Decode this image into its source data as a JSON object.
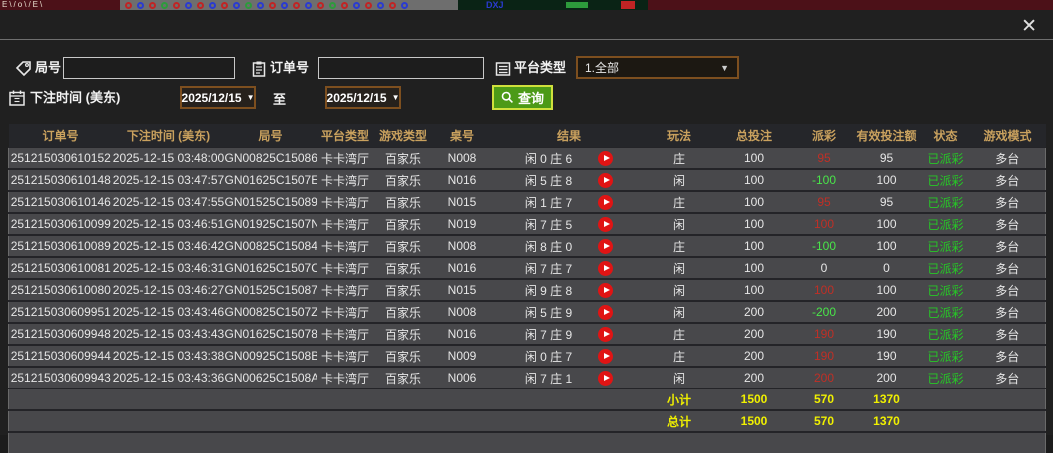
{
  "icons": {
    "close": "✕",
    "dropdown_arrow": "▼"
  },
  "filters": {
    "game_no": {
      "label": "局号",
      "value": ""
    },
    "order_no": {
      "label": "订单号",
      "value": ""
    },
    "platform_type": {
      "label": "平台类型",
      "selected": "1.全部"
    },
    "bet_time": {
      "label": "下注时间 (美东)",
      "from": "2025/12/15",
      "to_label": "至",
      "to": "2025/12/15"
    },
    "search_label": "查询"
  },
  "table": {
    "columns": [
      "订单号",
      "下注时间 (美东)",
      "局号",
      "平台类型",
      "游戏类型",
      "桌号",
      "结果",
      "玩法",
      "总投注",
      "派彩",
      "有效投注额",
      "状态",
      "游戏模式"
    ],
    "rows": [
      {
        "order_id": "251215030610152",
        "bet_time": "2025-12-15 03:48:00",
        "game_no": "GN00825C15086",
        "platform": "卡卡湾厅",
        "game_type": "百家乐",
        "table_no": "N008",
        "result": "闲 0 庄 6",
        "play": "庄",
        "total_bet": "100",
        "payout": "95",
        "valid_bet": "95",
        "status": "已派彩",
        "mode": "多台"
      },
      {
        "order_id": "251215030610148",
        "bet_time": "2025-12-15 03:47:57",
        "game_no": "GN01625C1507E",
        "platform": "卡卡湾厅",
        "game_type": "百家乐",
        "table_no": "N016",
        "result": "闲 5 庄 8",
        "play": "闲",
        "total_bet": "100",
        "payout": "-100",
        "valid_bet": "100",
        "status": "已派彩",
        "mode": "多台"
      },
      {
        "order_id": "251215030610146",
        "bet_time": "2025-12-15 03:47:55",
        "game_no": "GN01525C15089",
        "platform": "卡卡湾厅",
        "game_type": "百家乐",
        "table_no": "N015",
        "result": "闲 1 庄 7",
        "play": "庄",
        "total_bet": "100",
        "payout": "95",
        "valid_bet": "95",
        "status": "已派彩",
        "mode": "多台"
      },
      {
        "order_id": "251215030610099",
        "bet_time": "2025-12-15 03:46:51",
        "game_no": "GN01925C1507N",
        "platform": "卡卡湾厅",
        "game_type": "百家乐",
        "table_no": "N019",
        "result": "闲 7 庄 5",
        "play": "闲",
        "total_bet": "100",
        "payout": "100",
        "valid_bet": "100",
        "status": "已派彩",
        "mode": "多台"
      },
      {
        "order_id": "251215030610089",
        "bet_time": "2025-12-15 03:46:42",
        "game_no": "GN00825C15084",
        "platform": "卡卡湾厅",
        "game_type": "百家乐",
        "table_no": "N008",
        "result": "闲 8 庄 0",
        "play": "庄",
        "total_bet": "100",
        "payout": "-100",
        "valid_bet": "100",
        "status": "已派彩",
        "mode": "多台"
      },
      {
        "order_id": "251215030610081",
        "bet_time": "2025-12-15 03:46:31",
        "game_no": "GN01625C1507C",
        "platform": "卡卡湾厅",
        "game_type": "百家乐",
        "table_no": "N016",
        "result": "闲 7 庄 7",
        "play": "闲",
        "total_bet": "100",
        "payout": "0",
        "valid_bet": "0",
        "status": "已派彩",
        "mode": "多台"
      },
      {
        "order_id": "251215030610080",
        "bet_time": "2025-12-15 03:46:27",
        "game_no": "GN01525C15087",
        "platform": "卡卡湾厅",
        "game_type": "百家乐",
        "table_no": "N015",
        "result": "闲 9 庄 8",
        "play": "闲",
        "total_bet": "100",
        "payout": "100",
        "valid_bet": "100",
        "status": "已派彩",
        "mode": "多台"
      },
      {
        "order_id": "251215030609951",
        "bet_time": "2025-12-15 03:43:46",
        "game_no": "GN00825C1507Z",
        "platform": "卡卡湾厅",
        "game_type": "百家乐",
        "table_no": "N008",
        "result": "闲 5 庄 9",
        "play": "闲",
        "total_bet": "200",
        "payout": "-200",
        "valid_bet": "200",
        "status": "已派彩",
        "mode": "多台"
      },
      {
        "order_id": "251215030609948",
        "bet_time": "2025-12-15 03:43:43",
        "game_no": "GN01625C15078",
        "platform": "卡卡湾厅",
        "game_type": "百家乐",
        "table_no": "N016",
        "result": "闲 7 庄 9",
        "play": "庄",
        "total_bet": "200",
        "payout": "190",
        "valid_bet": "190",
        "status": "已派彩",
        "mode": "多台"
      },
      {
        "order_id": "251215030609944",
        "bet_time": "2025-12-15 03:43:38",
        "game_no": "GN00925C1508B",
        "platform": "卡卡湾厅",
        "game_type": "百家乐",
        "table_no": "N009",
        "result": "闲 0 庄 7",
        "play": "庄",
        "total_bet": "200",
        "payout": "190",
        "valid_bet": "190",
        "status": "已派彩",
        "mode": "多台"
      },
      {
        "order_id": "251215030609943",
        "bet_time": "2025-12-15 03:43:36",
        "game_no": "GN00625C1508A",
        "platform": "卡卡湾厅",
        "game_type": "百家乐",
        "table_no": "N006",
        "result": "闲 7 庄 1",
        "play": "闲",
        "total_bet": "200",
        "payout": "200",
        "valid_bet": "200",
        "status": "已派彩",
        "mode": "多台"
      }
    ],
    "subtotal": {
      "label": "小计",
      "total_bet": "1500",
      "payout": "570",
      "valid_bet": "1370"
    },
    "grand_total": {
      "label": "总计",
      "total_bet": "1500",
      "payout": "570",
      "valid_bet": "1370"
    }
  },
  "colors": {
    "header_text": "#c9a15e",
    "payout_positive": "#c02f26",
    "payout_negative": "#49e549",
    "status_green": "#26c826",
    "total_yellow": "#f0f000",
    "button_green": "#4c9a17",
    "button_border": "#cfe03c",
    "picker_border": "#7d4f1f"
  }
}
